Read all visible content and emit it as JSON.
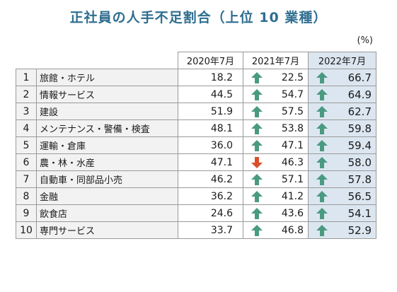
{
  "title": "正社員の人手不足割合（上位 10 業種）",
  "unit": "(%)",
  "columns": [
    "2020年7月",
    "2021年7月",
    "2022年7月"
  ],
  "colors": {
    "up": "#4a9a82",
    "down": "#d9502a",
    "title": "#2f6e8f",
    "highlight": "#dce6f0"
  },
  "rows": [
    {
      "rank": "1",
      "name": "旅館・ホテル",
      "v2020": "18.2",
      "v2021": "22.5",
      "a2021": "up",
      "v2022": "66.7",
      "a2022": "up"
    },
    {
      "rank": "2",
      "name": "情報サービス",
      "v2020": "44.5",
      "v2021": "54.7",
      "a2021": "up",
      "v2022": "64.9",
      "a2022": "up"
    },
    {
      "rank": "3",
      "name": "建設",
      "v2020": "51.9",
      "v2021": "57.5",
      "a2021": "up",
      "v2022": "62.7",
      "a2022": "up"
    },
    {
      "rank": "4",
      "name": "メンテナンス・警備・検査",
      "v2020": "48.1",
      "v2021": "53.8",
      "a2021": "up",
      "v2022": "59.8",
      "a2022": "up"
    },
    {
      "rank": "5",
      "name": "運輸・倉庫",
      "v2020": "36.0",
      "v2021": "47.1",
      "a2021": "up",
      "v2022": "59.4",
      "a2022": "up"
    },
    {
      "rank": "6",
      "name": "農・林・水産",
      "v2020": "47.1",
      "v2021": "46.3",
      "a2021": "down",
      "v2022": "58.0",
      "a2022": "up"
    },
    {
      "rank": "7",
      "name": "自動車・同部品小売",
      "v2020": "46.2",
      "v2021": "57.1",
      "a2021": "up",
      "v2022": "57.8",
      "a2022": "up"
    },
    {
      "rank": "8",
      "name": "金融",
      "v2020": "36.2",
      "v2021": "41.2",
      "a2021": "up",
      "v2022": "56.5",
      "a2022": "up"
    },
    {
      "rank": "9",
      "name": "飲食店",
      "v2020": "24.6",
      "v2021": "43.6",
      "a2021": "up",
      "v2022": "54.1",
      "a2022": "up"
    },
    {
      "rank": "10",
      "name": "専門サービス",
      "v2020": "33.7",
      "v2021": "46.8",
      "a2021": "up",
      "v2022": "52.9",
      "a2022": "up"
    }
  ]
}
